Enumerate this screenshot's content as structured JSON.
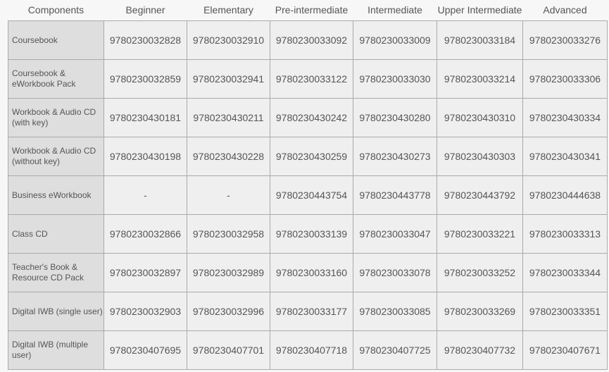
{
  "table": {
    "headers": [
      "Components",
      "Beginner",
      "Elementary",
      "Pre-intermediate",
      "Intermediate",
      "Upper Intermediate",
      "Advanced"
    ],
    "rows": [
      [
        "Coursebook",
        "9780230032828",
        "9780230032910",
        "9780230033092",
        "9780230033009",
        "9780230033184",
        "9780230033276"
      ],
      [
        "Coursebook & eWorkbook Pack",
        "9780230032859",
        "9780230032941",
        "9780230033122",
        "9780230033030",
        "9780230033214",
        "9780230033306"
      ],
      [
        "Workbook & Audio CD (with key)",
        "9780230430181",
        "9780230430211",
        "9780230430242",
        "9780230430280",
        "9780230430310",
        "9780230430334"
      ],
      [
        "Workbook & Audio CD (without key)",
        "9780230430198",
        "9780230430228",
        "9780230430259",
        "9780230430273",
        "9780230430303",
        "9780230430341"
      ],
      [
        "Business eWorkbook",
        "-",
        "-",
        "9780230443754",
        "9780230443778",
        "9780230443792",
        "9780230444638"
      ],
      [
        "Class CD",
        "9780230032866",
        "9780230032958",
        "9780230033139",
        "9780230033047",
        "9780230033221",
        "9780230033313"
      ],
      [
        "Teacher's Book & Resource CD Pack",
        "9780230032897",
        "9780230032989",
        "9780230033160",
        "9780230033078",
        "9780230033252",
        "9780230033344"
      ],
      [
        "Digital IWB (single user)",
        "9780230032903",
        "9780230032996",
        "9780230033177",
        "9780230033085",
        "9780230033269",
        "9780230033351"
      ],
      [
        "Digital IWB (multiple user)",
        "9780230407695",
        "9780230407701",
        "9780230407718",
        "9780230407725",
        "9780230407732",
        "9780230407671"
      ]
    ]
  }
}
